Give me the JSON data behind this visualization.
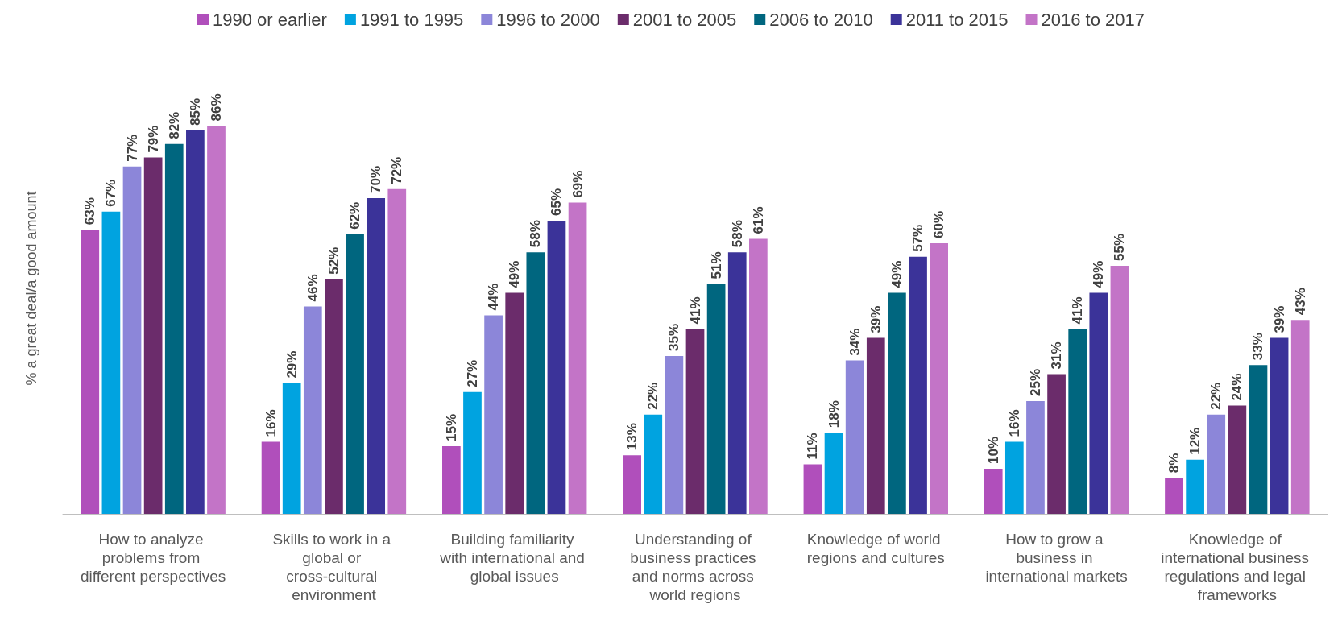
{
  "chart_data": {
    "type": "bar",
    "ylabel": "% a great deal/a good amount",
    "categories": [
      "How to analyze problems from different perspectives",
      "Skills to work in a global or cross-cultural environment",
      "Building familiarity with international and global issues",
      "Understanding of business practices and norms across world regions",
      "Knowledge of world regions and cultures",
      "How to grow a business in international markets",
      "Knowledge of international business regulations and legal frameworks"
    ],
    "series": [
      {
        "name": "1990 or earlier",
        "color": "#b04fbb",
        "values": [
          63,
          16,
          15,
          13,
          11,
          10,
          8
        ],
        "value_labels": [
          "63%",
          "16%",
          "15%",
          "13%",
          "11%",
          "10%",
          "8%"
        ]
      },
      {
        "name": "1991 to 1995",
        "color": "#00a3e0",
        "values": [
          67,
          29,
          27,
          22,
          18,
          16,
          12
        ],
        "value_labels": [
          "67%",
          "29%",
          "27%",
          "22%",
          "18%",
          "16%",
          "12%"
        ]
      },
      {
        "name": "1996 to 2000",
        "color": "#8c86d9",
        "values": [
          77,
          46,
          44,
          35,
          34,
          25,
          22
        ],
        "value_labels": [
          "77%",
          "46%",
          "44%",
          "35%",
          "34%",
          "25%",
          "22%"
        ]
      },
      {
        "name": "2001 to 2005",
        "color": "#6b2c6b",
        "values": [
          79,
          52,
          49,
          41,
          39,
          31,
          24
        ],
        "value_labels": [
          "79%",
          "52%",
          "49%",
          "41%",
          "39%",
          "31%",
          "24%"
        ]
      },
      {
        "name": "2006 to 2010",
        "color": "#00667f",
        "values": [
          82,
          62,
          58,
          51,
          49,
          41,
          33
        ],
        "value_labels": [
          "82%",
          "62%",
          "58%",
          "51%",
          "49%",
          "41%",
          "33%"
        ]
      },
      {
        "name": "2011 to 2015",
        "color": "#3b3399",
        "values": [
          85,
          70,
          65,
          58,
          57,
          49,
          39
        ],
        "value_labels": [
          "85%",
          "70%",
          "65%",
          "58%",
          "57%",
          "49%",
          "39%"
        ]
      },
      {
        "name": "2016 to 2017",
        "color": "#c374c7",
        "values": [
          86,
          72,
          69,
          61,
          60,
          55,
          43
        ],
        "value_labels": [
          "86%",
          "72%",
          "69%",
          "61%",
          "60%",
          "55%",
          "43%"
        ]
      }
    ],
    "legend": "top",
    "grid": false
  }
}
